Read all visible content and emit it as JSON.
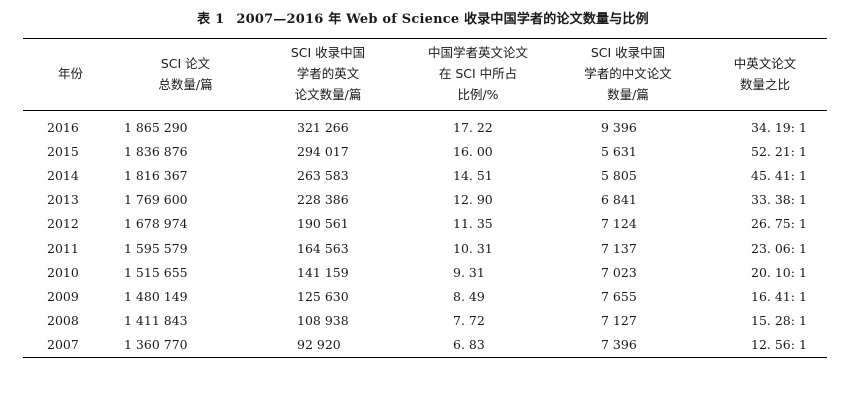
{
  "caption": {
    "number": "表 1",
    "title": "2007—2016 年 Web of Science 收录中国学者的论文数量与比例"
  },
  "columns": [
    "年份",
    "SCI 论文\n总数量/篇",
    "SCI 收录中国\n学者的英文\n论文数量/篇",
    "中国学者英文论文\n在 SCI 中所占\n比例/%",
    "SCI 收录中国\n学者的中文论文\n数量/篇",
    "中英文论文\n数量之比"
  ],
  "rows": [
    [
      "2016",
      "1 865 290",
      "321 266",
      "17. 22",
      "9 396",
      "34. 19: 1"
    ],
    [
      "2015",
      "1 836 876",
      "294 017",
      "16. 00",
      "5 631",
      "52. 21: 1"
    ],
    [
      "2014",
      "1 816 367",
      "263 583",
      "14. 51",
      "5 805",
      "45. 41: 1"
    ],
    [
      "2013",
      "1 769 600",
      "228 386",
      "12. 90",
      "6 841",
      "33. 38: 1"
    ],
    [
      "2012",
      "1 678 974",
      "190 561",
      "11. 35",
      "7 124",
      "26. 75: 1"
    ],
    [
      "2011",
      "1 595 579",
      "164 563",
      "10. 31",
      "7 137",
      "23. 06: 1"
    ],
    [
      "2010",
      "1 515 655",
      "141 159",
      "9. 31",
      "7 023",
      "20. 10: 1"
    ],
    [
      "2009",
      "1 480 149",
      "125 630",
      "8. 49",
      "7 655",
      "16. 41: 1"
    ],
    [
      "2008",
      "1 411 843",
      "108 938",
      "7. 72",
      "7 127",
      "15. 28: 1"
    ],
    [
      "2007",
      "1 360 770",
      "92 920",
      "6. 83",
      "7 396",
      "12. 56: 1"
    ]
  ]
}
